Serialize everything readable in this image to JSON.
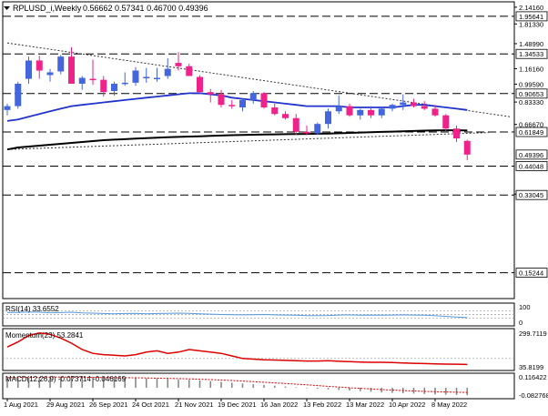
{
  "header": {
    "symbol": "RPLUSD_i,Weekly",
    "ohlc": "0.56662 0.57341 0.46700 0.49396"
  },
  "colors": {
    "bull": "#4466dd",
    "bear": "#ee2288",
    "ma_fast": "#2233cc",
    "ma_slow": "#000000",
    "rsi": "#5599dd",
    "momentum": "#dd0000",
    "macd_signal": "#dd0000",
    "grid": "#000000",
    "label_bg": "#ffffff"
  },
  "chart_data": [
    {
      "type": "candlestick",
      "name": "price",
      "scale": "log",
      "ylim": [
        0.12,
        2.14
      ],
      "price_ticks": [
        "2.14160",
        "1.81330",
        "1.48990",
        "1.16160",
        "0.99590",
        "0.83330",
        "0.66670",
        "0.33330"
      ],
      "level_labels": [
        {
          "text": "1.95641",
          "value": 1.95641
        },
        {
          "text": "1.34533",
          "value": 1.34533
        },
        {
          "text": "0.90653",
          "value": 0.90653
        },
        {
          "text": "0.61849",
          "value": 0.61849
        },
        {
          "text": "0.49396",
          "value": 0.49396
        },
        {
          "text": "0.44048",
          "value": 0.44048
        },
        {
          "text": "0.33045",
          "value": 0.33045
        },
        {
          "text": "0.15244",
          "value": 0.15244
        }
      ],
      "horizontal_levels": [
        1.95641,
        1.34533,
        0.90653,
        0.61849,
        0.44048,
        0.33045,
        0.15244
      ],
      "x_labels": [
        "1 Aug 2021",
        "29 Aug 2021",
        "26 Sep 2021",
        "24 Oct 2021",
        "21 Nov 2021",
        "19 Dec 2021",
        "16 Jan 2022",
        "13 Feb 2022",
        "13 Mar 2022",
        "10 Apr 2022",
        "8 May 2022"
      ],
      "x_label_index": [
        0,
        4,
        8,
        12,
        16,
        20,
        24,
        28,
        32,
        36,
        40
      ],
      "candles": [
        {
          "o": 0.77,
          "h": 0.82,
          "l": 0.73,
          "c": 0.8
        },
        {
          "o": 0.8,
          "h": 1.02,
          "l": 0.78,
          "c": 1.0
        },
        {
          "o": 1.05,
          "h": 1.31,
          "l": 1.0,
          "c": 1.26
        },
        {
          "o": 1.26,
          "h": 1.32,
          "l": 1.05,
          "c": 1.14
        },
        {
          "o": 1.09,
          "h": 1.16,
          "l": 1.02,
          "c": 1.12
        },
        {
          "o": 1.13,
          "h": 1.33,
          "l": 1.1,
          "c": 1.31
        },
        {
          "o": 1.31,
          "h": 1.44,
          "l": 1.0,
          "c": 1.0
        },
        {
          "o": 1.0,
          "h": 1.08,
          "l": 0.94,
          "c": 1.06
        },
        {
          "o": 1.05,
          "h": 1.27,
          "l": 0.99,
          "c": 1.04
        },
        {
          "o": 1.04,
          "h": 1.08,
          "l": 0.88,
          "c": 0.92
        },
        {
          "o": 0.93,
          "h": 1.02,
          "l": 0.89,
          "c": 1.0
        },
        {
          "o": 1.0,
          "h": 1.12,
          "l": 0.98,
          "c": 1.01
        },
        {
          "o": 1.01,
          "h": 1.18,
          "l": 0.98,
          "c": 1.14
        },
        {
          "o": 1.06,
          "h": 1.17,
          "l": 1.01,
          "c": 1.07
        },
        {
          "o": 1.06,
          "h": 1.17,
          "l": 1.02,
          "c": 1.06
        },
        {
          "o": 1.08,
          "h": 1.29,
          "l": 1.05,
          "c": 1.16
        },
        {
          "o": 1.23,
          "h": 1.37,
          "l": 1.14,
          "c": 1.19
        },
        {
          "o": 1.19,
          "h": 1.22,
          "l": 1.08,
          "c": 1.08
        },
        {
          "o": 1.07,
          "h": 1.09,
          "l": 0.9,
          "c": 0.92
        },
        {
          "o": 0.92,
          "h": 0.95,
          "l": 0.83,
          "c": 0.9
        },
        {
          "o": 0.9,
          "h": 0.94,
          "l": 0.79,
          "c": 0.81
        },
        {
          "o": 0.81,
          "h": 0.85,
          "l": 0.78,
          "c": 0.8
        },
        {
          "o": 0.79,
          "h": 0.86,
          "l": 0.76,
          "c": 0.85
        },
        {
          "o": 0.85,
          "h": 0.93,
          "l": 0.82,
          "c": 0.91
        },
        {
          "o": 0.91,
          "h": 0.92,
          "l": 0.78,
          "c": 0.79
        },
        {
          "o": 0.79,
          "h": 0.82,
          "l": 0.73,
          "c": 0.74
        },
        {
          "o": 0.74,
          "h": 0.76,
          "l": 0.7,
          "c": 0.71
        },
        {
          "o": 0.71,
          "h": 0.74,
          "l": 0.6,
          "c": 0.62
        },
        {
          "o": 0.62,
          "h": 0.66,
          "l": 0.6,
          "c": 0.61
        },
        {
          "o": 0.61,
          "h": 0.68,
          "l": 0.6,
          "c": 0.67
        },
        {
          "o": 0.67,
          "h": 0.78,
          "l": 0.64,
          "c": 0.76
        },
        {
          "o": 0.76,
          "h": 0.89,
          "l": 0.74,
          "c": 0.8
        },
        {
          "o": 0.8,
          "h": 0.82,
          "l": 0.72,
          "c": 0.73
        },
        {
          "o": 0.73,
          "h": 0.78,
          "l": 0.7,
          "c": 0.77
        },
        {
          "o": 0.77,
          "h": 0.8,
          "l": 0.71,
          "c": 0.73
        },
        {
          "o": 0.73,
          "h": 0.79,
          "l": 0.71,
          "c": 0.78
        },
        {
          "o": 0.78,
          "h": 0.82,
          "l": 0.76,
          "c": 0.81
        },
        {
          "o": 0.81,
          "h": 0.9,
          "l": 0.77,
          "c": 0.83
        },
        {
          "o": 0.83,
          "h": 0.86,
          "l": 0.79,
          "c": 0.8
        },
        {
          "o": 0.8,
          "h": 0.84,
          "l": 0.77,
          "c": 0.78
        },
        {
          "o": 0.78,
          "h": 0.81,
          "l": 0.72,
          "c": 0.73
        },
        {
          "o": 0.73,
          "h": 0.74,
          "l": 0.62,
          "c": 0.64
        },
        {
          "o": 0.64,
          "h": 0.66,
          "l": 0.56,
          "c": 0.58
        },
        {
          "o": 0.566,
          "h": 0.573,
          "l": 0.467,
          "c": 0.494
        }
      ],
      "ma_fast": [
        0.69,
        0.7,
        0.72,
        0.74,
        0.76,
        0.78,
        0.8,
        0.81,
        0.82,
        0.83,
        0.84,
        0.85,
        0.86,
        0.87,
        0.88,
        0.89,
        0.9,
        0.91,
        0.91,
        0.9,
        0.89,
        0.87,
        0.86,
        0.85,
        0.84,
        0.83,
        0.82,
        0.81,
        0.8,
        0.8,
        0.8,
        0.8,
        0.79,
        0.79,
        0.79,
        0.79,
        0.79,
        0.8,
        0.81,
        0.81,
        0.8,
        0.79,
        0.78,
        0.77
      ],
      "ma_slow": [
        0.52,
        0.53,
        0.535,
        0.54,
        0.545,
        0.55,
        0.555,
        0.56,
        0.565,
        0.57,
        0.573,
        0.576,
        0.579,
        0.582,
        0.585,
        0.587,
        0.589,
        0.591,
        0.593,
        0.595,
        0.597,
        0.599,
        0.601,
        0.602,
        0.603,
        0.604,
        0.605,
        0.606,
        0.607,
        0.608,
        0.609,
        0.611,
        0.613,
        0.615,
        0.617,
        0.619,
        0.621,
        0.623,
        0.625,
        0.627,
        0.628,
        0.629,
        0.629,
        0.628
      ],
      "trendline_upper": {
        "from": {
          "i": 0,
          "v": 1.5
        },
        "to": {
          "i": 47,
          "v": 0.72
        }
      },
      "trendline_lower": {
        "from": {
          "i": 0,
          "v": 0.52
        },
        "to": {
          "i": 45,
          "v": 0.615
        }
      }
    },
    {
      "type": "line",
      "name": "rsi",
      "title": "RSI(14) 33.6552",
      "ylim": [
        0,
        100
      ],
      "ticks": [
        "100",
        "0"
      ],
      "values": [
        60,
        61,
        63,
        62,
        59,
        60,
        62,
        58,
        57,
        55,
        54,
        55,
        56,
        54,
        55,
        56,
        57,
        56,
        54,
        52,
        50,
        49,
        48,
        49,
        50,
        48,
        47,
        46,
        44,
        44,
        45,
        47,
        48,
        46,
        47,
        46,
        47,
        48,
        47,
        46,
        44,
        40,
        37,
        34
      ]
    },
    {
      "type": "line",
      "name": "momentum",
      "title": "Momentum(23) 53.2841",
      "ylim": [
        20,
        320
      ],
      "ticks": [
        "299.7119",
        "35.8199"
      ],
      "values": [
        190,
        230,
        280,
        300,
        290,
        260,
        220,
        170,
        140,
        130,
        125,
        120,
        130,
        150,
        160,
        140,
        150,
        170,
        160,
        150,
        140,
        120,
        100,
        95,
        90,
        88,
        85,
        82,
        80,
        80,
        82,
        78,
        75,
        72,
        70,
        70,
        68,
        65,
        62,
        60,
        58,
        56,
        55,
        53
      ]
    },
    {
      "type": "bar",
      "name": "macd",
      "title": "MACD(12,26,9) -0.073714 -0.046169",
      "ylim": [
        -0.09,
        0.125
      ],
      "ticks": [
        "0.116422",
        "-0.082768"
      ],
      "histogram": [
        0.09,
        0.095,
        0.1,
        0.105,
        0.108,
        0.11,
        0.112,
        0.11,
        0.108,
        0.105,
        0.1,
        0.098,
        0.095,
        0.092,
        0.088,
        0.085,
        0.082,
        0.078,
        0.072,
        0.065,
        0.058,
        0.05,
        0.042,
        0.035,
        0.028,
        0.02,
        0.012,
        0.005,
        -0.002,
        -0.01,
        -0.016,
        -0.022,
        -0.028,
        -0.034,
        -0.04,
        -0.045,
        -0.05,
        -0.054,
        -0.058,
        -0.062,
        -0.066,
        -0.069,
        -0.071,
        -0.074
      ],
      "signal": [
        0.1,
        0.101,
        0.102,
        0.103,
        0.104,
        0.104,
        0.104,
        0.103,
        0.102,
        0.101,
        0.1,
        0.099,
        0.098,
        0.096,
        0.094,
        0.092,
        0.09,
        0.087,
        0.084,
        0.08,
        0.076,
        0.071,
        0.066,
        0.06,
        0.054,
        0.048,
        0.042,
        0.035,
        0.028,
        0.021,
        0.014,
        0.007,
        0.0,
        -0.006,
        -0.012,
        -0.018,
        -0.023,
        -0.028,
        -0.032,
        -0.036,
        -0.039,
        -0.042,
        -0.044,
        -0.046
      ]
    }
  ]
}
